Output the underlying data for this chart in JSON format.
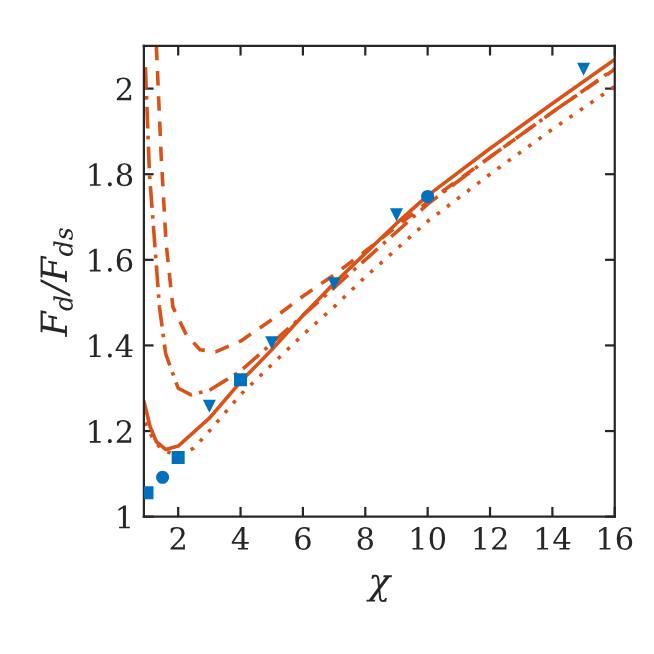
{
  "chart_data": {
    "type": "line",
    "xlabel": "χ",
    "ylabel": "F$_{d}$/F$_{ds}$",
    "xlim": [
      0.9,
      16
    ],
    "ylim": [
      1,
      2.1
    ],
    "xticks": [
      2,
      4,
      6,
      8,
      10,
      12,
      14,
      16
    ],
    "yticks": [
      1,
      1.2,
      1.4,
      1.6,
      1.8,
      2
    ],
    "grid": false,
    "legend": false,
    "series": [
      {
        "line_style": "solid",
        "color": "#d95319",
        "x": [
          0.9,
          1.1,
          1.3,
          1.6,
          2,
          3,
          4,
          5,
          6,
          7,
          8,
          9,
          10,
          12,
          14,
          16
        ],
        "values": [
          1.27,
          1.21,
          1.175,
          1.157,
          1.165,
          1.23,
          1.315,
          1.39,
          1.47,
          1.545,
          1.615,
          1.685,
          1.75,
          1.86,
          1.965,
          2.068
        ]
      },
      {
        "line_style": "dashdot",
        "color": "#d95319",
        "x": [
          0.95,
          1.08,
          1.4,
          1.6,
          2.0,
          2.4,
          3,
          4,
          5,
          6,
          7,
          8,
          10,
          12,
          14,
          16
        ],
        "values": [
          2.05,
          1.8,
          1.49,
          1.38,
          1.3,
          1.285,
          1.295,
          1.34,
          1.405,
          1.47,
          1.535,
          1.6,
          1.73,
          1.84,
          1.945,
          2.047
        ]
      },
      {
        "line_style": "dashed",
        "color": "#d95319",
        "x": [
          1.3,
          1.45,
          1.61,
          1.83,
          2.26,
          2.7,
          3.2,
          4,
          5,
          6,
          7,
          8,
          10,
          12,
          14,
          16
        ],
        "values": [
          2.1,
          1.85,
          1.64,
          1.49,
          1.425,
          1.39,
          1.385,
          1.41,
          1.46,
          1.515,
          1.565,
          1.62,
          1.735,
          1.84,
          1.945,
          2.045
        ]
      },
      {
        "line_style": "dotted",
        "color": "#d95319",
        "x": [
          0.95,
          1.2,
          1.5,
          2,
          2.5,
          3,
          4,
          5,
          6,
          7,
          8,
          10,
          12,
          14,
          16
        ],
        "values": [
          1.22,
          1.18,
          1.155,
          1.143,
          1.16,
          1.2,
          1.285,
          1.355,
          1.425,
          1.49,
          1.56,
          1.69,
          1.8,
          1.905,
          2.005
        ]
      },
      {
        "type": "scatter",
        "marker": "square",
        "color": "#0072bd",
        "x": [
          1,
          2,
          4
        ],
        "values": [
          1.056,
          1.138,
          1.32
        ]
      },
      {
        "type": "scatter",
        "marker": "circle",
        "color": "#0072bd",
        "x": [
          1.5,
          10
        ],
        "values": [
          1.092,
          1.748
        ]
      },
      {
        "type": "scatter",
        "marker": "triangle_down",
        "color": "#0072bd",
        "x": [
          3,
          5,
          7,
          9,
          15
        ],
        "values": [
          1.258,
          1.406,
          1.544,
          1.705,
          2.045
        ]
      }
    ]
  }
}
